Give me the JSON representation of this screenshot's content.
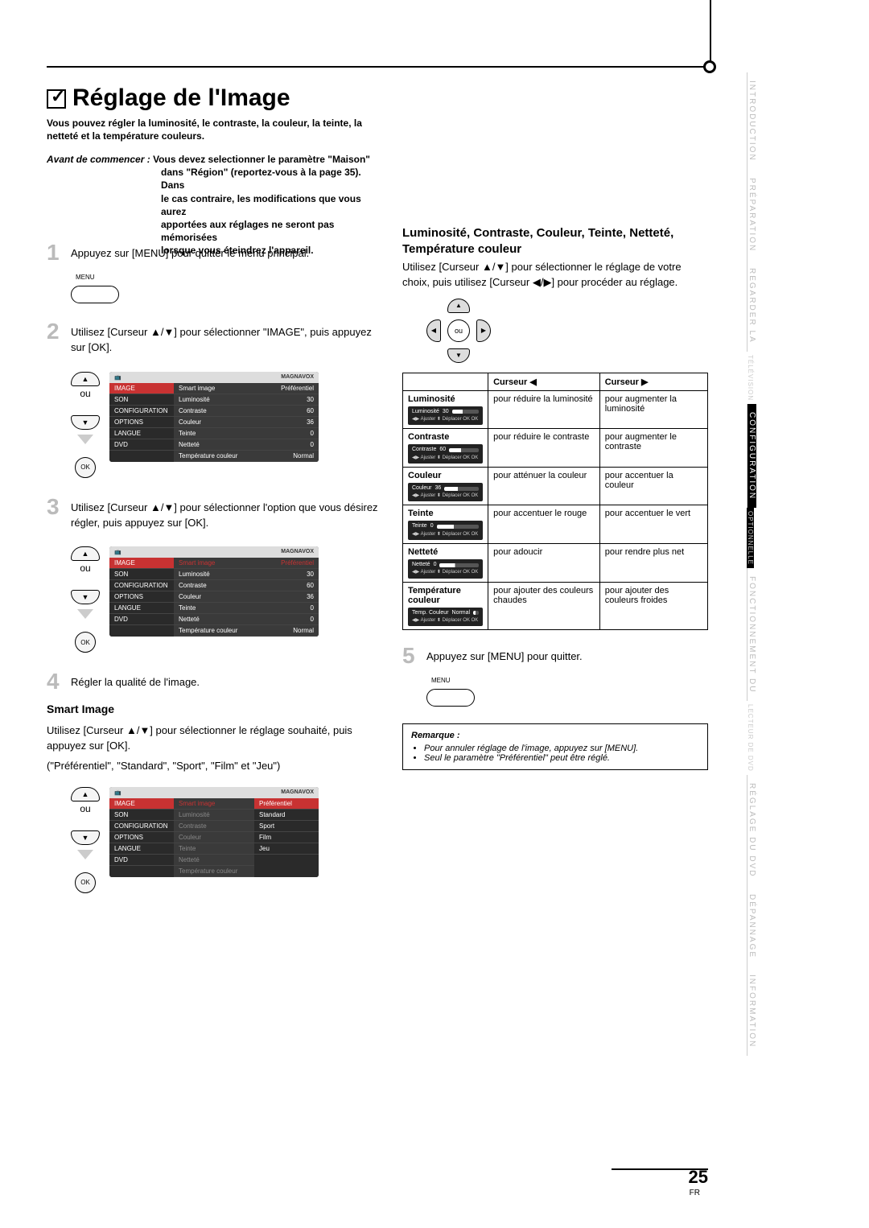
{
  "header": {
    "title": "Réglage de l'Image",
    "intro": "Vous pouvez régler la luminosité, le contraste, la couleur, la teinte, la netteté et la température couleurs.",
    "before_label": "Avant de commencer :",
    "before_text_first": "Vous devez selectionner le paramètre \"Maison\"",
    "before_lines": [
      "dans \"Région\" (reportez-vous à la page 35). Dans",
      "le cas contraire, les modifications que vous aurez",
      "apportées aux réglages ne seront pas mémorisées",
      "lorsque vous éteindrez l'appareil."
    ]
  },
  "steps": {
    "s1": "Appuyez sur [MENU] pour quitter le menu principal.",
    "menu_label": "MENU",
    "s2": "Utilisez [Curseur ▲/▼] pour sélectionner \"IMAGE\", puis appuyez sur [OK].",
    "ou": "ou",
    "ok": "OK",
    "s3": "Utilisez [Curseur ▲/▼] pour sélectionner l'option que vous désirez régler, puis appuyez sur [OK].",
    "s4": "Régler la qualité de l'image.",
    "smart_title": "Smart Image",
    "smart_text": "Utilisez [Curseur ▲/▼] pour sélectionner le réglage souhaité, puis appuyez sur [OK].",
    "smart_options": "(\"Préférentiel\", \"Standard\", \"Sport\", \"Film\" et \"Jeu\")",
    "s5": "Appuyez sur [MENU] pour quitter."
  },
  "tv_menu": {
    "brand": "MAGNAVOX",
    "left_items": [
      "IMAGE",
      "SON",
      "CONFIGURATION",
      "OPTIONS",
      "LANGUE",
      "DVD"
    ],
    "right_items": [
      {
        "label": "Smart image",
        "val": "Préférentiel"
      },
      {
        "label": "Luminosité",
        "val": "30"
      },
      {
        "label": "Contraste",
        "val": "60"
      },
      {
        "label": "Couleur",
        "val": "36"
      },
      {
        "label": "Teinte",
        "val": "0"
      },
      {
        "label": "Netteté",
        "val": "0"
      },
      {
        "label": "Température couleur",
        "val": "Normal"
      }
    ],
    "smart_options": [
      "Préférentiel",
      "Standard",
      "Sport",
      "Film",
      "Jeu"
    ]
  },
  "right": {
    "heading": "Luminosité, Contraste, Couleur, Teinte, Netteté, Température couleur",
    "text": "Utilisez [Curseur ▲/▼] pour sélectionner le réglage de votre choix, puis utilisez [Curseur ◀/▶] pour procéder au réglage.",
    "col_left": "Curseur ◀",
    "col_right": "Curseur ▶",
    "rows": [
      {
        "name": "Luminosité",
        "slider_label": "Luminosité",
        "slider_val": "30",
        "left": "pour réduire la luminosité",
        "right": "pour augmenter la luminosité"
      },
      {
        "name": "Contraste",
        "slider_label": "Contraste",
        "slider_val": "60",
        "left": "pour réduire le contraste",
        "right": "pour augmenter le contraste"
      },
      {
        "name": "Couleur",
        "slider_label": "Couleur",
        "slider_val": "36",
        "left": "pour atténuer la couleur",
        "right": "pour accentuer la couleur"
      },
      {
        "name": "Teinte",
        "slider_label": "Teinte",
        "slider_val": "0",
        "left": "pour accentuer le rouge",
        "right": "pour accentuer le vert"
      },
      {
        "name": "Netteté",
        "slider_label": "Netteté",
        "slider_val": "0",
        "left": "pour adoucir",
        "right": "pour rendre plus net"
      },
      {
        "name": "Température couleur",
        "slider_label": "Temp. Couleur",
        "slider_val": "Normal",
        "left": "pour ajouter des couleurs chaudes",
        "right": "pour ajouter des couleurs froides"
      }
    ],
    "slider_controls": "◀▶ Ajuster    ⬍ Déplacer    OK OK"
  },
  "remark": {
    "title": "Remarque :",
    "items": [
      "Pour annuler réglage de l'image, appuyez sur [MENU].",
      "Seul le paramètre \"Préférentiel\" peut être réglé."
    ]
  },
  "tabs": [
    {
      "label": "INTRODUCTION",
      "active": false
    },
    {
      "label": "PRÉPARATION",
      "active": false
    },
    {
      "label": "REGARDER LA",
      "sub": "TÉLÉVISION",
      "active": false
    },
    {
      "label": "CONFIGURATION",
      "sub": "OPTIONNELLE",
      "active": true
    },
    {
      "label": "FONCTIONNEMENT DU",
      "sub": "LECTEUR DE DVD",
      "active": false
    },
    {
      "label": "RÉGLAGE DU DVD",
      "active": false
    },
    {
      "label": "DÉPANNAGE",
      "active": false
    },
    {
      "label": "INFORMATION",
      "active": false
    }
  ],
  "page": {
    "num": "25",
    "lang": "FR"
  },
  "colors": {
    "accent": "#c83232",
    "grey_num": "#bbbbbb",
    "tv_bg": "#333333"
  }
}
